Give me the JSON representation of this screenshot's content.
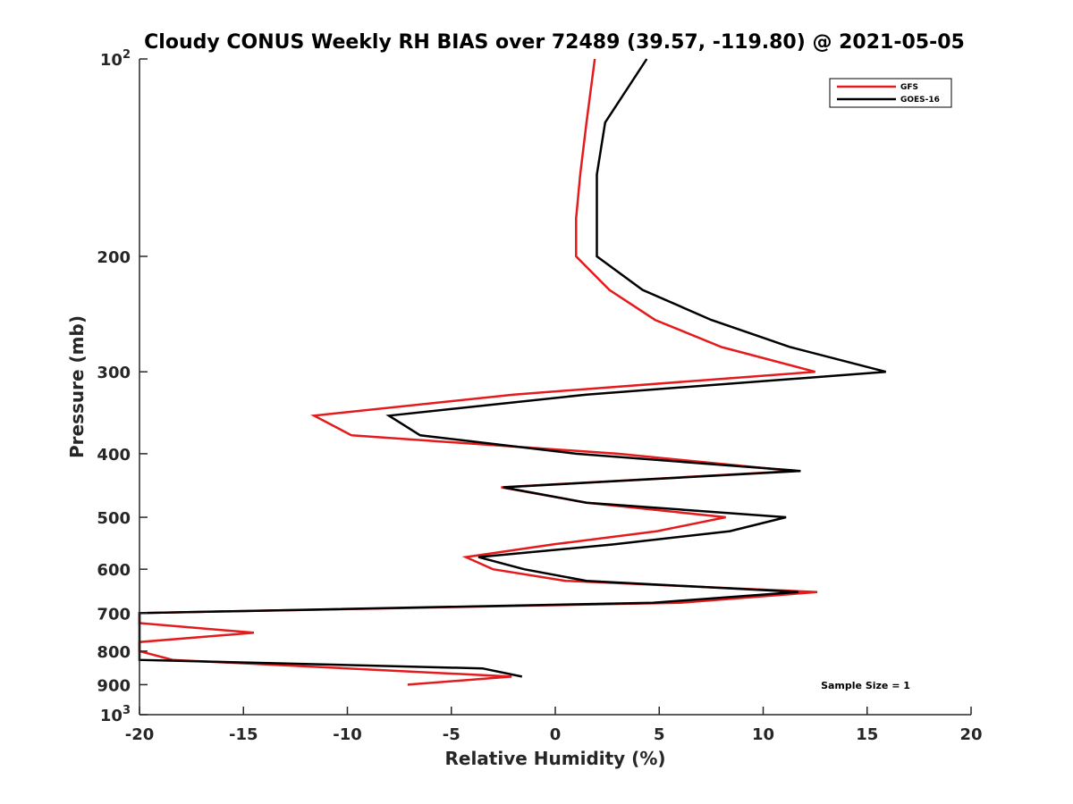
{
  "chart_data": {
    "type": "line",
    "title": "Cloudy CONUS Weekly RH BIAS over 72489 (39.57, -119.80) @ 2021-05-05",
    "xlabel": "Relative Humidity (%)",
    "ylabel": "Pressure (mb)",
    "xlim": [
      -20,
      20
    ],
    "ylim": [
      100,
      1000
    ],
    "yscale": "log",
    "y_inverted": true,
    "grid": false,
    "legend_position": "top-right",
    "annotation": "Sample Size = 1",
    "x_ticks": [
      "-20",
      "-15",
      "-10",
      "-5",
      "0",
      "5",
      "10",
      "15",
      "20"
    ],
    "y_ticks": [
      {
        "value": 100,
        "base": "10",
        "exp": "2"
      },
      {
        "value": 200,
        "label": "200"
      },
      {
        "value": 300,
        "label": "300"
      },
      {
        "value": 400,
        "label": "400"
      },
      {
        "value": 500,
        "label": "500"
      },
      {
        "value": 600,
        "label": "600"
      },
      {
        "value": 700,
        "label": "700"
      },
      {
        "value": 800,
        "label": "800"
      },
      {
        "value": 900,
        "label": "900"
      },
      {
        "value": 1000,
        "base": "10",
        "exp": "3"
      }
    ],
    "series": [
      {
        "name": "GFS",
        "color": "#e41a1c",
        "x": [
          1.9,
          1.5,
          1.2,
          1.0,
          1.0,
          2.6,
          4.8,
          8.0,
          12.5,
          -2.0,
          -11.6,
          -9.8,
          3.0,
          11.5,
          -2.6,
          1.5,
          8.2,
          4.9,
          -0.1,
          -4.3,
          -3.0,
          0.5,
          12.6,
          6.0,
          -20.0,
          -20.0,
          -14.5,
          -20.0,
          -20.0,
          -18.4,
          -10.0,
          -2.1,
          -7.1
        ],
        "y": [
          100,
          125,
          150,
          175,
          200,
          225,
          250,
          275,
          300,
          325,
          350,
          375,
          400,
          425,
          450,
          475,
          500,
          525,
          550,
          575,
          600,
          625,
          650,
          675,
          700,
          725,
          750,
          775,
          800,
          825,
          850,
          875,
          900
        ]
      },
      {
        "name": "GOES-16",
        "color": "#000000",
        "x": [
          4.4,
          2.4,
          2.0,
          2.0,
          2.0,
          4.2,
          7.5,
          11.3,
          15.9,
          1.5,
          -8.0,
          -6.5,
          1.0,
          11.8,
          -2.5,
          1.5,
          11.1,
          8.4,
          2.8,
          -3.7,
          -1.5,
          1.5,
          11.7,
          4.7,
          -20.0,
          -20.0,
          -3.5,
          -1.6
        ],
        "y": [
          100,
          125,
          150,
          175,
          200,
          225,
          250,
          275,
          300,
          325,
          350,
          375,
          400,
          425,
          450,
          475,
          500,
          525,
          550,
          575,
          600,
          625,
          650,
          675,
          700,
          825,
          850,
          875
        ]
      }
    ]
  }
}
